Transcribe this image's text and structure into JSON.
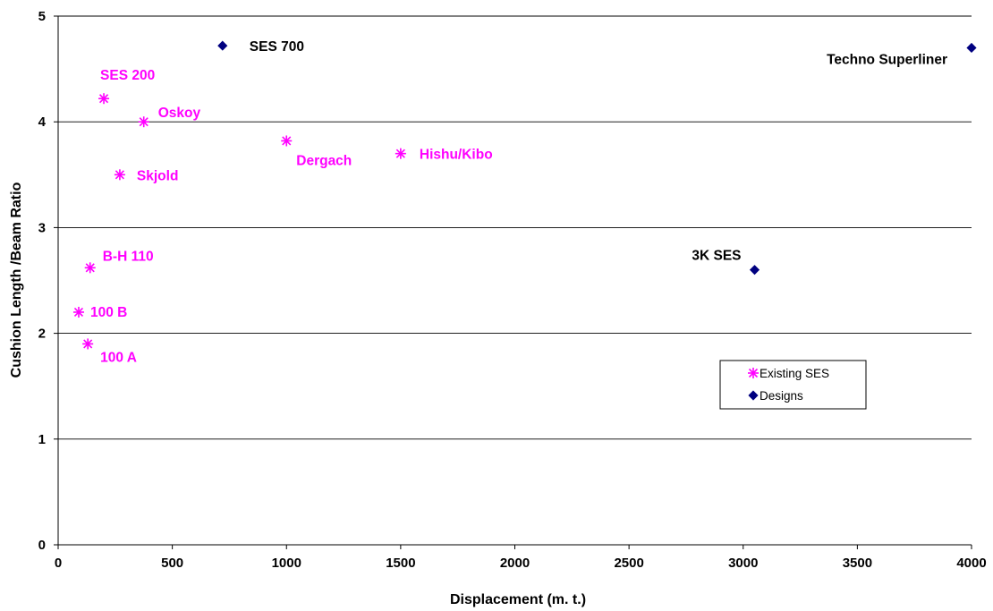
{
  "chart_data": {
    "type": "scatter",
    "xlabel": "Displacement (m. t.)",
    "ylabel": "Cushion Length /Beam Ratio",
    "xlim": [
      0,
      4000
    ],
    "ylim": [
      0,
      5
    ],
    "x_ticks": [
      "0",
      "500",
      "1000",
      "1500",
      "2000",
      "2500",
      "3000",
      "3500",
      "4000"
    ],
    "y_ticks": [
      "0",
      "1",
      "2",
      "3",
      "4",
      "5"
    ],
    "grid": "horizontal",
    "legend_position": "lower-right",
    "series": [
      {
        "name": "Existing SES",
        "marker": "asterisk",
        "color": "#ff00ff",
        "points": [
          {
            "label": "SES 200",
            "x": 200,
            "y": 4.22
          },
          {
            "label": "Oskoy",
            "x": 375,
            "y": 4.0
          },
          {
            "label": "Skjold",
            "x": 270,
            "y": 3.5
          },
          {
            "label": "Dergach",
            "x": 1000,
            "y": 3.82
          },
          {
            "label": "Hishu/Kibo",
            "x": 1500,
            "y": 3.7
          },
          {
            "label": "B-H 110",
            "x": 140,
            "y": 2.62
          },
          {
            "label": "100 B",
            "x": 90,
            "y": 2.2
          },
          {
            "label": "100 A",
            "x": 130,
            "y": 1.9
          }
        ]
      },
      {
        "name": "Designs",
        "marker": "diamond",
        "color": "#000080",
        "points": [
          {
            "label": "SES 700",
            "x": 720,
            "y": 4.72
          },
          {
            "label": "Techno Superliner",
            "x": 4000,
            "y": 4.7
          },
          {
            "label": "3K SES",
            "x": 3050,
            "y": 2.6
          }
        ]
      }
    ]
  },
  "colors": {
    "existing_label": "#ff00ff",
    "design_label": "#000000",
    "gridline": "#000000"
  }
}
